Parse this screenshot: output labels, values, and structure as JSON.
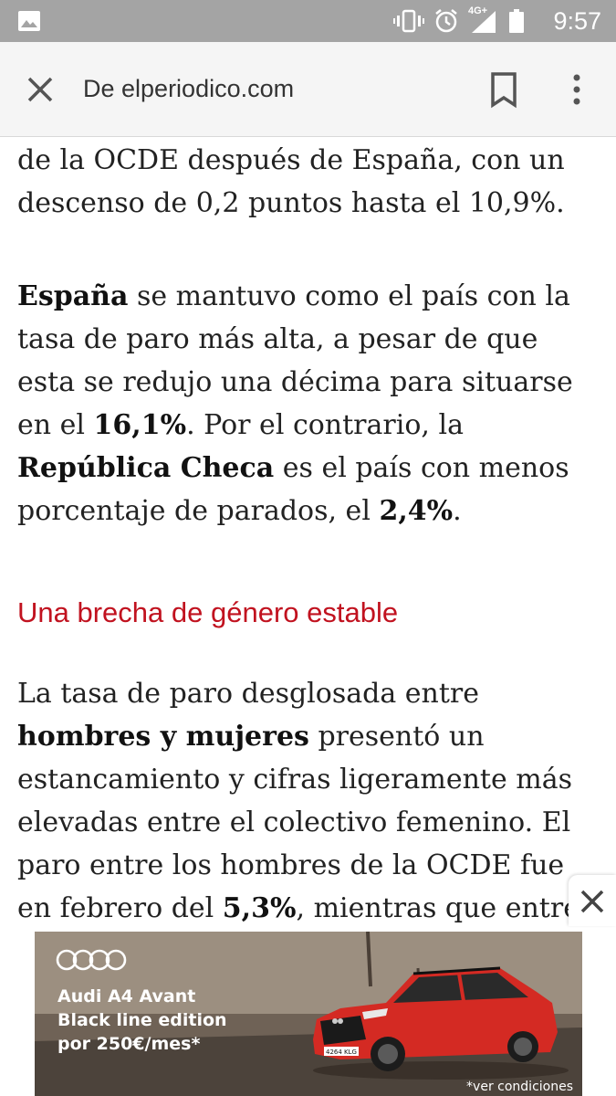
{
  "status_bar": {
    "time": "9:57",
    "network": "4G+",
    "icons": [
      "image-notification-icon",
      "vibrate-icon",
      "alarm-icon",
      "signal-icon",
      "battery-icon"
    ]
  },
  "toolbar": {
    "url": "De elperiodico.com"
  },
  "article": {
    "p1": "de la OCDE después de España, con un descenso de 0,2 puntos hasta el 10,9%.",
    "p2": {
      "b1": "España",
      "t1": " se mantuvo como el país con la tasa de paro más alta, a pesar de que esta se redujo una décima para situarse en el ",
      "b2": "16,1%",
      "t2": ". Por el contrario, la ",
      "b3": "República Checa",
      "t3": " es el país con menos porcentaje de parados, el ",
      "b4": "2,4%",
      "t4": "."
    },
    "subhead": "Una brecha de género estable",
    "p3": {
      "t1": "La tasa de paro desglosada entre ",
      "b1": "hombres y mujeres",
      "t2": " presentó un estancamiento y cifras ligeramente más elevadas entre el colectivo femenino. El paro entre los hombres de la OCDE fue en febrero del ",
      "b2": "5,3%",
      "t3": ", mientras que entre las mujeres"
    }
  },
  "ad": {
    "line1": "Audi A4 Avant",
    "line2": "Black line edition",
    "line3": "por 250€/mes*",
    "footnote": "*ver condiciones",
    "plate": "4264 KLG",
    "colors": {
      "car_body": "#d42a23",
      "sky": "#a39585"
    }
  }
}
